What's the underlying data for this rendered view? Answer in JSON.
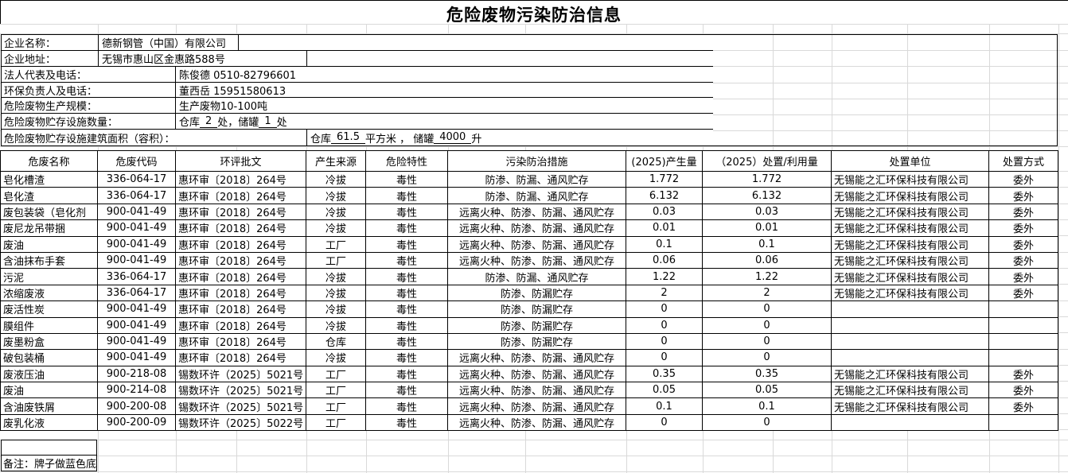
{
  "title": "危险废物污染防治信息",
  "info": {
    "rows": [
      {
        "label": "企业名称：",
        "value": "德新钢管（中国）有限公司"
      },
      {
        "label": "企业地址：",
        "value": "无锡市惠山区金惠路588号"
      },
      {
        "label": "法人代表及电话：",
        "value": "陈俊德 0510-82796601"
      },
      {
        "label": "环保负责人及电话：",
        "value": "董西岳 15951580613"
      },
      {
        "label": "危险废物生产规模：",
        "value": "生产废物10-100吨"
      },
      {
        "label": "危险废物贮存设施数量：",
        "parts": [
          "仓库",
          "2",
          "处，储罐",
          "1",
          "处"
        ]
      },
      {
        "label": "危险废物贮存设施建筑面积（容积）：",
        "parts": [
          "仓库",
          "61.5",
          "平方米 ， 储罐",
          "4000",
          "升"
        ]
      }
    ]
  },
  "table": {
    "columns": [
      "危废名称",
      "危废代码",
      "环评批文",
      "产生来源",
      "危险特性",
      "污染防治措施",
      "(2025)产生量",
      "（2025）处置/利用量",
      "处置单位",
      "处置方式"
    ],
    "rows": [
      {
        "name": "皂化槽渣",
        "code": "336-064-17",
        "approval": "惠环审〔2018〕264号",
        "source": "冷拔",
        "hazard": "毒性",
        "measures": "防渗、防漏、通风贮存",
        "produced": "1.772",
        "disposed": "1.772",
        "unit": "无锡能之汇环保科技有限公司",
        "method": "委外"
      },
      {
        "name": "皂化渣",
        "code": "336-064-17",
        "approval": "惠环审〔2018〕264号",
        "source": "冷拔",
        "hazard": "毒性",
        "measures": "防渗、防漏、通风贮存",
        "produced": "6.132",
        "disposed": "6.132",
        "unit": "无锡能之汇环保科技有限公司",
        "method": "委外"
      },
      {
        "name": "废包装袋（皂化剂",
        "code": "900-041-49",
        "approval": "惠环审〔2018〕264号",
        "source": "冷拔",
        "hazard": "毒性",
        "measures": "远离火种、防渗、防漏、通风贮存",
        "produced": "0.03",
        "disposed": "0.03",
        "unit": "无锡能之汇环保科技有限公司",
        "method": "委外"
      },
      {
        "name": "废尼龙吊带捆",
        "code": "900-041-49",
        "approval": "惠环审〔2018〕264号",
        "source": "冷拔",
        "hazard": "毒性",
        "measures": "远离火种、防渗、防漏、通风贮存",
        "produced": "0.01",
        "disposed": "0.01",
        "unit": "无锡能之汇环保科技有限公司",
        "method": "委外"
      },
      {
        "name": "废油",
        "code": "900-041-49",
        "approval": "惠环审〔2018〕264号",
        "source": "工厂",
        "hazard": "毒性",
        "measures": "远离火种、防渗、防漏、通风贮存",
        "produced": "0.1",
        "disposed": "0.1",
        "unit": "无锡能之汇环保科技有限公司",
        "method": "委外"
      },
      {
        "name": "含油抹布手套",
        "code": "900-041-49",
        "approval": "惠环审〔2018〕264号",
        "source": "工厂",
        "hazard": "毒性",
        "measures": "远离火种、防渗、防漏、通风贮存",
        "produced": "0.06",
        "disposed": "0.06",
        "unit": "无锡能之汇环保科技有限公司",
        "method": "委外"
      },
      {
        "name": "污泥",
        "code": "336-064-17",
        "approval": "惠环审〔2018〕264号",
        "source": "冷拔",
        "hazard": "毒性",
        "measures": "防渗、防漏、通风贮存",
        "produced": "1.22",
        "disposed": "1.22",
        "unit": "无锡能之汇环保科技有限公司",
        "method": "委外"
      },
      {
        "name": "浓缩废液",
        "code": "336-064-17",
        "approval": "惠环审〔2018〕264号",
        "source": "冷拔",
        "hazard": "毒性",
        "measures": "防渗、防漏贮存",
        "produced": "2",
        "disposed": "2",
        "unit": "无锡能之汇环保科技有限公司",
        "method": "委外"
      },
      {
        "name": "废活性炭",
        "code": "900-041-49",
        "approval": "惠环审〔2018〕264号",
        "source": "冷拔",
        "hazard": "毒性",
        "measures": "防渗、防漏贮存",
        "produced": "0",
        "disposed": "0",
        "unit": "",
        "method": ""
      },
      {
        "name": "膜组件",
        "code": "900-041-49",
        "approval": "惠环审〔2018〕264号",
        "source": "冷拔",
        "hazard": "毒性",
        "measures": "防渗、防漏贮存",
        "produced": "0",
        "disposed": "0",
        "unit": "",
        "method": ""
      },
      {
        "name": "废墨粉盒",
        "code": "900-041-49",
        "approval": "惠环审〔2018〕264号",
        "source": "仓库",
        "hazard": "毒性",
        "measures": "防渗、防漏贮存",
        "produced": "0",
        "disposed": "0",
        "unit": "",
        "method": ""
      },
      {
        "name": "破包装桶",
        "code": "900-041-49",
        "approval": "惠环审〔2018〕264号",
        "source": "冷拔",
        "hazard": "毒性",
        "measures": "远离火种、防渗、防漏、通风贮存",
        "produced": "0",
        "disposed": "0",
        "unit": "",
        "method": ""
      },
      {
        "name": "废液压油",
        "code": "900-218-08",
        "approval": "锡数环许（2025〕5021号",
        "source": "工厂",
        "hazard": "毒性",
        "measures": "远离火种、防渗、防漏、通风贮存",
        "produced": "0.35",
        "disposed": "0.35",
        "unit": "无锡能之汇环保科技有限公司",
        "method": "委外"
      },
      {
        "name": "废油",
        "code": "900-214-08",
        "approval": "锡数环许（2025〕5021号",
        "source": "工厂",
        "hazard": "毒性",
        "measures": "远离火种、防渗、防漏、通风贮存",
        "produced": "0.05",
        "disposed": "0.05",
        "unit": "无锡能之汇环保科技有限公司",
        "method": "委外"
      },
      {
        "name": "含油废铁屑",
        "code": "900-200-08",
        "approval": "锡数环许（2025〕5021号",
        "source": "工厂",
        "hazard": "毒性",
        "measures": "远离火种、防渗、防漏、通风贮存",
        "produced": "0.1",
        "disposed": "0.1",
        "unit": "无锡能之汇环保科技有限公司",
        "method": "委外"
      },
      {
        "name": "废乳化液",
        "code": "900-200-09",
        "approval": "锡数环许（2025〕5022号",
        "source": "工厂",
        "hazard": "毒性",
        "measures": "远离火种、防渗、防漏、通风贮存",
        "produced": "0",
        "disposed": "0",
        "unit": "",
        "method": ""
      }
    ]
  },
  "note": {
    "text": "备注：牌子做蓝色底"
  }
}
